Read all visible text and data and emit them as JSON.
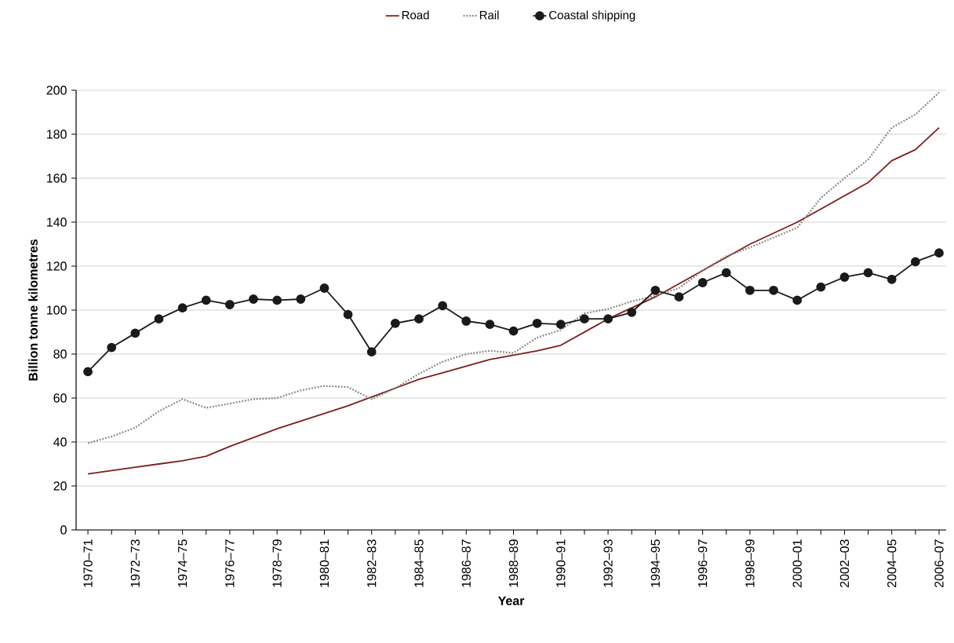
{
  "chart_data": {
    "type": "line",
    "xlabel": "Year",
    "ylabel": "Billion tonne kilometres",
    "categories": [
      "1970–71",
      null,
      "1972–73",
      null,
      "1974–75",
      null,
      "1976–77",
      null,
      "1978–79",
      null,
      "1980–81",
      null,
      "1982–83",
      null,
      "1984–85",
      null,
      "1986–87",
      null,
      "1988–89",
      null,
      "1990–91",
      null,
      "1992–93",
      null,
      "1994–95",
      null,
      "1996–97",
      null,
      "1998–99",
      null,
      "2000–01",
      null,
      "2002–03",
      null,
      "2004–05",
      null,
      "2006–07"
    ],
    "series": [
      {
        "name": "Road",
        "color": "#7b1f1f",
        "line_style": "solid",
        "marker": "none",
        "values": [
          25.5,
          27,
          28.5,
          30,
          31.5,
          33.5,
          38,
          42,
          46,
          49.5,
          53,
          56.5,
          60.5,
          64.5,
          68.5,
          71.5,
          74.5,
          77.5,
          79.5,
          81.5,
          84,
          90,
          96,
          101,
          106,
          112,
          118,
          124,
          130,
          135,
          140,
          146,
          152,
          158,
          168,
          173,
          183
        ]
      },
      {
        "name": "Rail",
        "color": "#808080",
        "line_style": "dotted",
        "marker": "none",
        "values": [
          39.5,
          42.5,
          46.5,
          54,
          59.5,
          55.5,
          57.5,
          59.5,
          60,
          63.5,
          65.5,
          65,
          59.5,
          64.5,
          71,
          76.5,
          80,
          81.5,
          80.5,
          87.5,
          91,
          98.5,
          100.5,
          104,
          106.5,
          110,
          118,
          124.5,
          128.5,
          133,
          137.5,
          151,
          160,
          168.5,
          183,
          189,
          199
        ]
      },
      {
        "name": "Coastal shipping",
        "color": "#1a1a1a",
        "line_style": "solid",
        "marker": "circle",
        "values": [
          72,
          83,
          89.5,
          96,
          101,
          104.5,
          102.5,
          105,
          104.5,
          105,
          110,
          98,
          81,
          94,
          96,
          102,
          95,
          93.5,
          90.5,
          94,
          93.5,
          96,
          96,
          99,
          109,
          106,
          112.5,
          117,
          109,
          109,
          104.5,
          110.5,
          115,
          117,
          114,
          122,
          126
        ]
      }
    ],
    "ylim": [
      0,
      200
    ],
    "yticks": [
      0,
      20,
      40,
      60,
      80,
      100,
      120,
      140,
      160,
      180,
      200
    ],
    "grid": "y",
    "legend": "top"
  }
}
